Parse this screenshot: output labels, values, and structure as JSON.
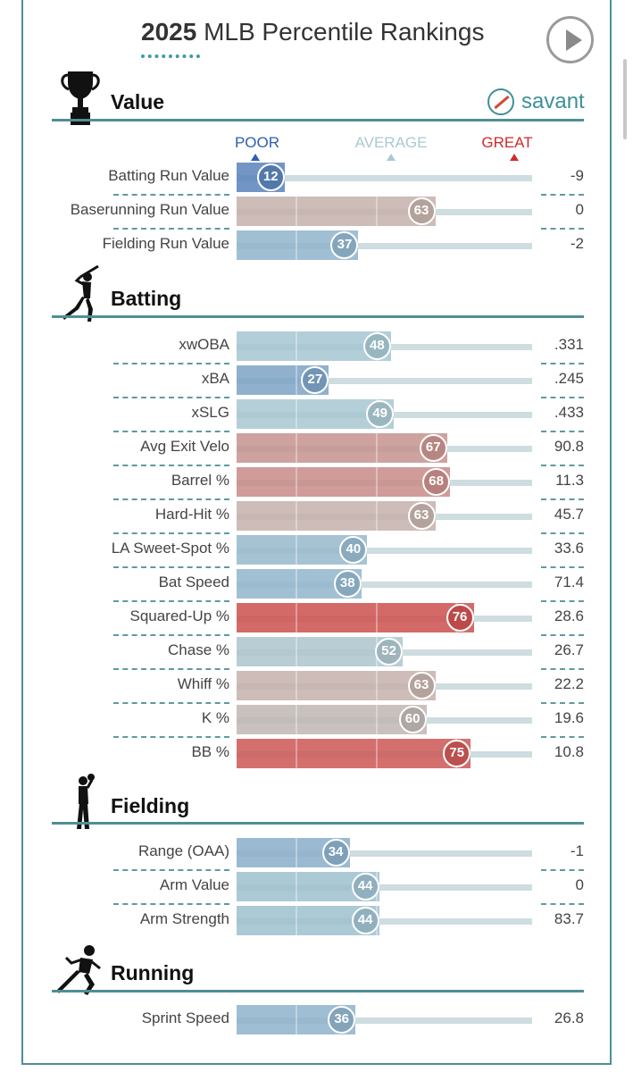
{
  "header": {
    "year": "2025",
    "title": "MLB Percentile Rankings"
  },
  "logo": {
    "text": "savant"
  },
  "scale": {
    "poor": "POOR",
    "average": "AVERAGE",
    "great": "GREAT"
  },
  "colors": {
    "poor": "#2f5fb0",
    "average": "#a9c9d2",
    "great": "#cf2b2b",
    "accent": "#4f8f95"
  },
  "sections": [
    {
      "id": "value",
      "title": "Value",
      "icon": "trophy-icon"
    },
    {
      "id": "batting",
      "title": "Batting",
      "icon": "batter-icon"
    },
    {
      "id": "fielding",
      "title": "Fielding",
      "icon": "fielder-icon"
    },
    {
      "id": "running",
      "title": "Running",
      "icon": "runner-icon"
    }
  ],
  "chart_data": {
    "type": "bar",
    "xlim": [
      0,
      100
    ],
    "series": [
      {
        "section": "Value",
        "metrics": [
          {
            "label": "Batting Run Value",
            "percentile": 12,
            "value": "-9"
          },
          {
            "label": "Baserunning Run Value",
            "percentile": 63,
            "value": "0"
          },
          {
            "label": "Fielding Run Value",
            "percentile": 37,
            "value": "-2"
          }
        ]
      },
      {
        "section": "Batting",
        "metrics": [
          {
            "label": "xwOBA",
            "percentile": 48,
            "value": ".331"
          },
          {
            "label": "xBA",
            "percentile": 27,
            "value": ".245"
          },
          {
            "label": "xSLG",
            "percentile": 49,
            "value": ".433"
          },
          {
            "label": "Avg Exit Velo",
            "percentile": 67,
            "value": "90.8"
          },
          {
            "label": "Barrel %",
            "percentile": 68,
            "value": "11.3"
          },
          {
            "label": "Hard-Hit %",
            "percentile": 63,
            "value": "45.7"
          },
          {
            "label": "LA Sweet-Spot %",
            "percentile": 40,
            "value": "33.6"
          },
          {
            "label": "Bat Speed",
            "percentile": 38,
            "value": "71.4"
          },
          {
            "label": "Squared-Up %",
            "percentile": 76,
            "value": "28.6"
          },
          {
            "label": "Chase %",
            "percentile": 52,
            "value": "26.7"
          },
          {
            "label": "Whiff %",
            "percentile": 63,
            "value": "22.2"
          },
          {
            "label": "K %",
            "percentile": 60,
            "value": "19.6"
          },
          {
            "label": "BB %",
            "percentile": 75,
            "value": "10.8"
          }
        ]
      },
      {
        "section": "Fielding",
        "metrics": [
          {
            "label": "Range (OAA)",
            "percentile": 34,
            "value": "-1"
          },
          {
            "label": "Arm Value",
            "percentile": 44,
            "value": "0"
          },
          {
            "label": "Arm Strength",
            "percentile": 44,
            "value": "83.7"
          }
        ]
      },
      {
        "section": "Running",
        "metrics": [
          {
            "label": "Sprint Speed",
            "percentile": 36,
            "value": "26.8"
          }
        ]
      }
    ]
  }
}
